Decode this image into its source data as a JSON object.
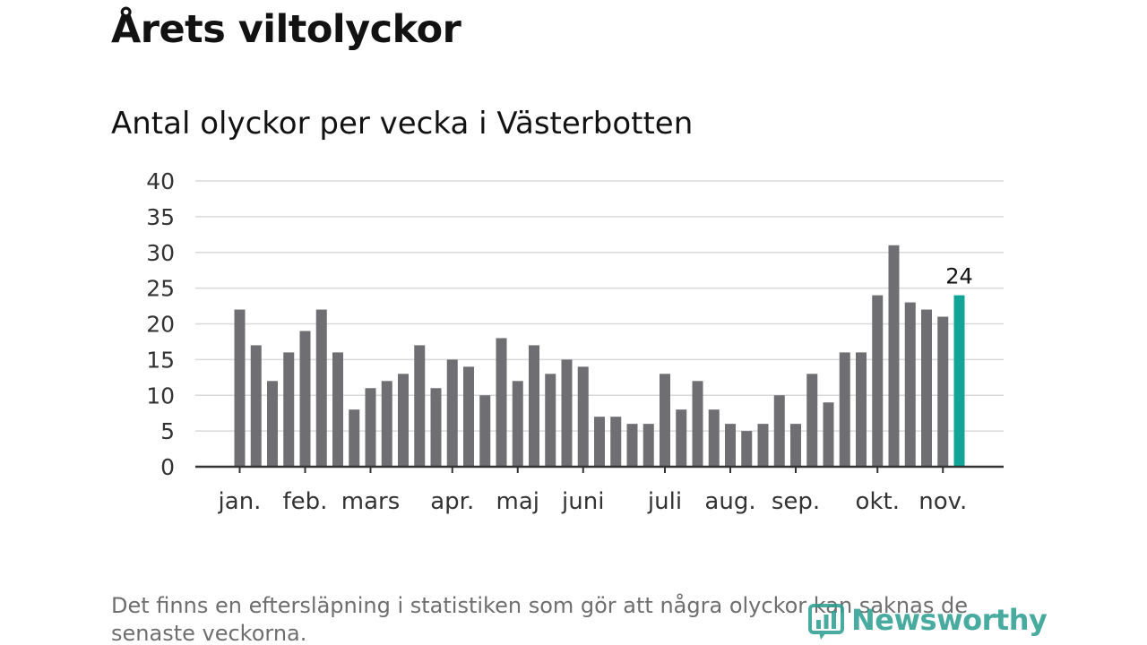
{
  "title": "Årets viltolyckor",
  "subtitle": "Antal olyckor per vecka i Västerbotten",
  "footnote": "Det finns en eftersläpning i statistiken som gör att några olyckor kan saknas de senaste veckorna.",
  "logo": {
    "text": "Newsworthy",
    "icon": "newsworthy-chart-icon"
  },
  "colors": {
    "bar": "#6f6e73",
    "highlight": "#12a597",
    "grid": "#d9d9d9",
    "axis": "#333333"
  },
  "chart_data": {
    "type": "bar",
    "title": "Antal olyckor per vecka i Västerbotten",
    "xlabel": "",
    "ylabel": "",
    "ylim": [
      0,
      40
    ],
    "yticks": [
      0,
      5,
      10,
      15,
      20,
      25,
      30,
      35,
      40
    ],
    "grid": true,
    "values": [
      22,
      17,
      12,
      16,
      19,
      22,
      16,
      8,
      11,
      12,
      13,
      17,
      11,
      15,
      14,
      10,
      18,
      12,
      17,
      13,
      15,
      14,
      7,
      7,
      6,
      6,
      13,
      8,
      12,
      8,
      6,
      5,
      6,
      10,
      6,
      13,
      9,
      16,
      16,
      24,
      31,
      23,
      22,
      21,
      24
    ],
    "highlight_index": 44,
    "highlight_label": "24",
    "month_labels": [
      {
        "label": "jan.",
        "index": 0
      },
      {
        "label": "feb.",
        "index": 4
      },
      {
        "label": "mars",
        "index": 8
      },
      {
        "label": "apr.",
        "index": 13
      },
      {
        "label": "maj",
        "index": 17
      },
      {
        "label": "juni",
        "index": 21
      },
      {
        "label": "juli",
        "index": 26
      },
      {
        "label": "aug.",
        "index": 30
      },
      {
        "label": "sep.",
        "index": 34
      },
      {
        "label": "okt.",
        "index": 39
      },
      {
        "label": "nov.",
        "index": 43
      }
    ]
  }
}
